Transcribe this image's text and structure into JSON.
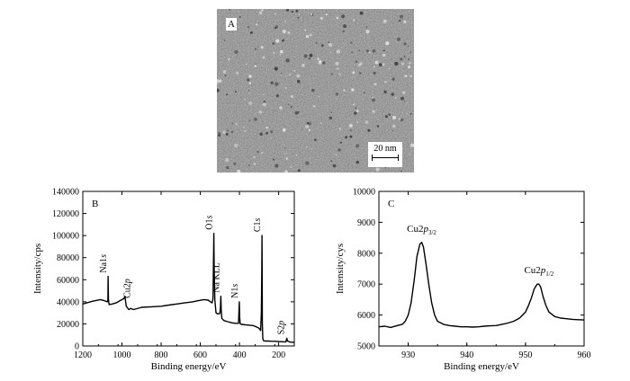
{
  "panel_a": {
    "label": "A",
    "scale_bar": "20 nm"
  },
  "chart_data": [
    {
      "panel": "B",
      "type": "line",
      "xlabel": "Binding energy/eV",
      "ylabel": "Intensity/cps",
      "xlim": [
        1200,
        120
      ],
      "ylim": [
        0,
        140000
      ],
      "x_reversed": true,
      "xticks": [
        1200,
        1000,
        800,
        600,
        400,
        200
      ],
      "yticks": [
        0,
        20000,
        40000,
        60000,
        80000,
        100000,
        120000,
        140000
      ],
      "series": [
        {
          "x": [
            1200,
            1150,
            1110,
            1090,
            1075,
            1072,
            1071,
            1069,
            1066,
            1050,
            1030,
            1010,
            990,
            985,
            978,
            965,
            955,
            950,
            940,
            900,
            850,
            800,
            760,
            720,
            680,
            640,
            610,
            580,
            560,
            548,
            540,
            535,
            533,
            531,
            529,
            526,
            520,
            510,
            500,
            497,
            495,
            493,
            490,
            480,
            460,
            440,
            420,
            405,
            401,
            399,
            396,
            390,
            360,
            330,
            310,
            300,
            292,
            288,
            286,
            285,
            284,
            283,
            281,
            278,
            270,
            260,
            240,
            220,
            200,
            180,
            163,
            158,
            155,
            140,
            120
          ],
          "y": [
            38000,
            40500,
            42000,
            41000,
            40000,
            42000,
            63000,
            42000,
            37500,
            38000,
            39000,
            41000,
            43000,
            45000,
            36000,
            33000,
            34000,
            33500,
            33000,
            35000,
            35500,
            36000,
            37000,
            38000,
            39000,
            40000,
            41000,
            42000,
            41500,
            40000,
            39000,
            43000,
            70000,
            102000,
            70000,
            42000,
            30000,
            29000,
            29500,
            36000,
            45000,
            33000,
            25000,
            23000,
            22000,
            21000,
            20500,
            20500,
            40000,
            26000,
            20000,
            19500,
            19000,
            18500,
            17000,
            16000,
            14000,
            30000,
            70000,
            100000,
            70000,
            20000,
            7000,
            5000,
            4500,
            4500,
            4300,
            4200,
            4000,
            3800,
            3600,
            7000,
            4500,
            3500,
            3200
          ]
        }
      ],
      "annotations": [
        {
          "text": "Na1",
          "italic": "s",
          "x": 1071,
          "y": 63000
        },
        {
          "text": "Cu2",
          "italic": "p",
          "x": 950,
          "y": 40000
        },
        {
          "text": "O1",
          "italic": "s",
          "x": 531,
          "y": 102000
        },
        {
          "text": "Na KLL",
          "italic": "",
          "x": 495,
          "y": 45000
        },
        {
          "text": "N1",
          "italic": "s",
          "x": 401,
          "y": 40000
        },
        {
          "text": "C1",
          "italic": "s",
          "x": 285,
          "y": 100000
        },
        {
          "text": "S2",
          "italic": "p",
          "x": 163,
          "y": 7000
        }
      ]
    },
    {
      "panel": "C",
      "type": "line",
      "xlabel": "Binding energy/eV",
      "ylabel": "Intensity/cys",
      "xlim": [
        925,
        960
      ],
      "ylim": [
        5000,
        10000
      ],
      "xticks": [
        930,
        940,
        950,
        960
      ],
      "yticks": [
        5000,
        6000,
        7000,
        8000,
        9000,
        10000
      ],
      "series": [
        {
          "x": [
            925,
            926,
            927,
            928,
            929,
            929.5,
            930,
            930.5,
            931,
            931.5,
            932,
            932.3,
            932.6,
            933,
            933.5,
            934,
            934.5,
            935,
            936,
            937,
            938,
            939,
            940,
            941,
            942,
            943,
            944,
            945,
            946,
            947,
            948,
            949,
            950,
            950.5,
            951,
            951.5,
            952,
            952.3,
            952.6,
            953,
            953.5,
            954,
            955,
            956,
            957,
            958,
            959,
            960
          ],
          "y": [
            5620,
            5640,
            5600,
            5650,
            5700,
            5800,
            6000,
            6400,
            7100,
            7900,
            8300,
            8350,
            8200,
            7700,
            7000,
            6400,
            6000,
            5800,
            5700,
            5660,
            5640,
            5620,
            5620,
            5610,
            5620,
            5640,
            5650,
            5660,
            5700,
            5740,
            5800,
            5900,
            6100,
            6300,
            6550,
            6850,
            7000,
            7000,
            6900,
            6600,
            6300,
            6100,
            5950,
            5900,
            5880,
            5860,
            5850,
            5840
          ]
        }
      ],
      "annotations": [
        {
          "text": "Cu2",
          "italic": "p",
          "sub": "3/2",
          "x": 932.3,
          "y": 8350
        },
        {
          "text": "Cu2",
          "italic": "p",
          "sub": "1/2",
          "x": 952.3,
          "y": 7000
        }
      ]
    }
  ]
}
